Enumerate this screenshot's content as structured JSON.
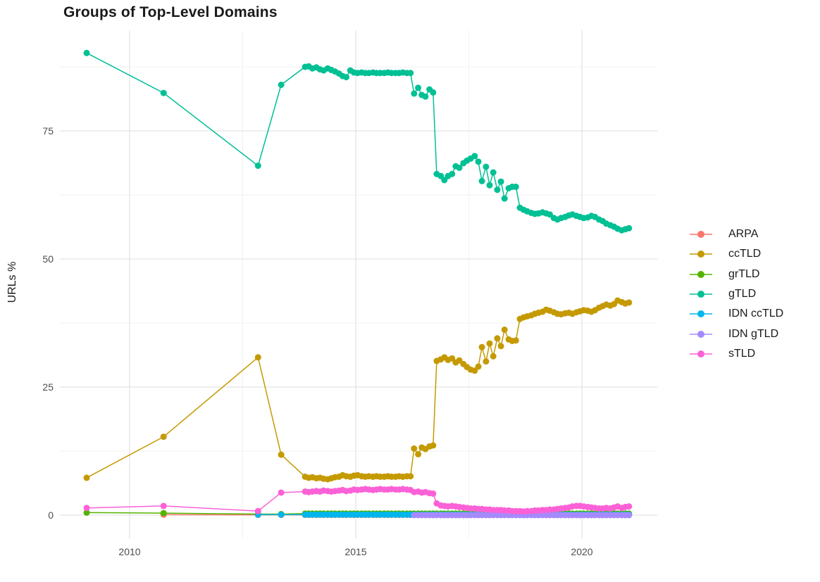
{
  "chart_data": {
    "type": "line",
    "title": "Groups of Top-Level Domains",
    "xlabel": "",
    "ylabel": "URLs %",
    "xlim": [
      2008.45,
      2021.67
    ],
    "ylim": [
      -4.5,
      94.7
    ],
    "x_tick_labels": [
      "2010",
      "2015",
      "2020"
    ],
    "x_tick_values": [
      2010,
      2015,
      2020
    ],
    "x_minor_gridlines": [
      2012.5,
      2017.5
    ],
    "y_tick_labels": [
      "0",
      "25",
      "50",
      "75"
    ],
    "y_tick_values": [
      0,
      25,
      50,
      75
    ],
    "y_minor_gridlines": [
      12.5,
      37.5,
      62.5,
      87.5
    ],
    "grid": "on",
    "legend_position": "right",
    "x": [
      2009.05,
      2010.75,
      2012.84,
      2013.35,
      2013.88,
      2013.96,
      2014.04,
      2014.13,
      2014.21,
      2014.29,
      2014.38,
      2014.46,
      2014.54,
      2014.63,
      2014.71,
      2014.79,
      2014.88,
      2014.96,
      2015.04,
      2015.13,
      2015.21,
      2015.29,
      2015.38,
      2015.46,
      2015.54,
      2015.63,
      2015.71,
      2015.79,
      2015.88,
      2015.96,
      2016.04,
      2016.13,
      2016.21,
      2016.29,
      2016.38,
      2016.46,
      2016.54,
      2016.63,
      2016.71,
      2016.79,
      2016.88,
      2016.96,
      2017.04,
      2017.13,
      2017.21,
      2017.29,
      2017.38,
      2017.46,
      2017.54,
      2017.63,
      2017.71,
      2017.79,
      2017.88,
      2017.96,
      2018.04,
      2018.13,
      2018.21,
      2018.29,
      2018.38,
      2018.46,
      2018.54,
      2018.63,
      2018.71,
      2018.79,
      2018.88,
      2018.96,
      2019.04,
      2019.13,
      2019.21,
      2019.29,
      2019.38,
      2019.46,
      2019.54,
      2019.63,
      2019.71,
      2019.79,
      2019.88,
      2019.96,
      2020.04,
      2020.13,
      2020.21,
      2020.29,
      2020.38,
      2020.46,
      2020.54,
      2020.63,
      2020.71,
      2020.79,
      2020.88,
      2020.96,
      2021.04
    ],
    "series": [
      {
        "name": "ARPA",
        "color": "#F8766D",
        "values": [
          null,
          0.1,
          0.05,
          0.05,
          0.05,
          0.05,
          0.05,
          0.05,
          0.05,
          0.05,
          0.05,
          0.05,
          0.05,
          0.05,
          0.05,
          0.05,
          0.05,
          0.05,
          0.05,
          0.05,
          0.05,
          0.05,
          0.05,
          0.05,
          0.05,
          0.05,
          0.05,
          0.05,
          0.05,
          0.05,
          0.05,
          0.05,
          0.05,
          0.05,
          0.05,
          0.05,
          0.05,
          0.05,
          0.05,
          0.05,
          0.05,
          0.05,
          0.05,
          0.05,
          0.05,
          0.05,
          0.05,
          0.05,
          0.05,
          0.05,
          0.05,
          0.05,
          0.05,
          0.05,
          0.05,
          0.05,
          0.05,
          0.05,
          0.05,
          0.05,
          0.05,
          0.05,
          0.05,
          0.05,
          0.05,
          0.05,
          0.05,
          0.05,
          0.05,
          0.05,
          0.05,
          0.05,
          0.05,
          0.05,
          0.05,
          0.05,
          0.05,
          0.05,
          0.05,
          0.05,
          0.05,
          0.05,
          0.05,
          0.05,
          0.05,
          0.05,
          0.05,
          0.05,
          0.05,
          0.05,
          0.05
        ]
      },
      {
        "name": "ccTLD",
        "color": "#C49A00",
        "values": [
          7.3,
          15.3,
          30.8,
          11.8,
          7.5,
          7.3,
          7.4,
          7.2,
          7.3,
          7.1,
          7.0,
          7.2,
          7.4,
          7.5,
          7.8,
          7.6,
          7.5,
          7.7,
          7.8,
          7.6,
          7.5,
          7.6,
          7.5,
          7.6,
          7.5,
          7.5,
          7.6,
          7.5,
          7.5,
          7.6,
          7.5,
          7.6,
          7.6,
          13.0,
          11.9,
          13.2,
          12.9,
          13.4,
          13.6,
          30.1,
          30.4,
          30.8,
          30.3,
          30.6,
          29.8,
          30.2,
          29.5,
          28.9,
          28.4,
          28.2,
          29.0,
          32.8,
          30.0,
          33.5,
          31.0,
          34.5,
          33.0,
          36.2,
          34.3,
          34.0,
          34.1,
          38.3,
          38.6,
          38.8,
          39.0,
          39.3,
          39.5,
          39.7,
          40.1,
          39.9,
          39.6,
          39.3,
          39.2,
          39.4,
          39.5,
          39.3,
          39.6,
          39.8,
          40.0,
          39.9,
          39.7,
          40.0,
          40.5,
          40.8,
          41.1,
          40.9,
          41.2,
          41.9,
          41.6,
          41.3,
          41.5
        ]
      },
      {
        "name": "grTLD",
        "color": "#53B400",
        "values": [
          0.5,
          0.4,
          0.2,
          0.2,
          0.3,
          0.3,
          0.3,
          0.3,
          0.3,
          0.3,
          0.3,
          0.3,
          0.3,
          0.3,
          0.3,
          0.3,
          0.3,
          0.3,
          0.3,
          0.3,
          0.3,
          0.3,
          0.3,
          0.3,
          0.3,
          0.3,
          0.3,
          0.3,
          0.3,
          0.3,
          0.3,
          0.3,
          0.3,
          0.3,
          0.3,
          0.3,
          0.3,
          0.3,
          0.3,
          0.3,
          0.3,
          0.3,
          0.3,
          0.3,
          0.3,
          0.3,
          0.3,
          0.3,
          0.3,
          0.3,
          0.3,
          0.3,
          0.3,
          0.3,
          0.3,
          0.3,
          0.3,
          0.3,
          0.3,
          0.3,
          0.3,
          0.3,
          0.3,
          0.3,
          0.3,
          0.3,
          0.3,
          0.3,
          0.3,
          0.3,
          0.3,
          0.3,
          0.3,
          0.3,
          0.3,
          0.3,
          0.3,
          0.3,
          0.3,
          0.3,
          0.3,
          0.3,
          0.3,
          0.3,
          0.3,
          0.3,
          0.3,
          0.3,
          0.3,
          0.3,
          0.3
        ]
      },
      {
        "name": "gTLD",
        "color": "#00C094",
        "values": [
          90.2,
          82.4,
          68.2,
          84.0,
          87.5,
          87.6,
          87.2,
          87.4,
          87.0,
          86.8,
          87.2,
          86.9,
          86.6,
          86.2,
          85.7,
          85.5,
          86.8,
          86.4,
          86.3,
          86.4,
          86.3,
          86.3,
          86.4,
          86.3,
          86.3,
          86.3,
          86.4,
          86.3,
          86.3,
          86.3,
          86.4,
          86.3,
          86.3,
          82.3,
          83.4,
          82.0,
          81.7,
          83.1,
          82.5,
          66.6,
          66.2,
          65.4,
          66.2,
          66.6,
          68.1,
          67.8,
          68.7,
          69.2,
          69.6,
          70.1,
          69.0,
          65.2,
          68.0,
          64.4,
          66.9,
          63.5,
          65.1,
          61.8,
          63.8,
          64.1,
          64.1,
          60.0,
          59.6,
          59.3,
          59.0,
          58.8,
          58.9,
          59.1,
          58.9,
          58.7,
          58.0,
          57.7,
          58.0,
          58.2,
          58.5,
          58.7,
          58.4,
          58.2,
          58.0,
          58.1,
          58.4,
          58.2,
          57.7,
          57.4,
          56.9,
          56.6,
          56.3,
          55.9,
          55.6,
          55.8,
          56.0
        ]
      },
      {
        "name": "IDN ccTLD",
        "color": "#00B6EB",
        "values": [
          null,
          null,
          0.1,
          0.1,
          0.1,
          0.1,
          0.1,
          0.1,
          0.1,
          0.1,
          0.1,
          0.1,
          0.1,
          0.1,
          0.1,
          0.1,
          0.1,
          0.1,
          0.1,
          0.1,
          0.1,
          0.1,
          0.1,
          0.1,
          0.1,
          0.1,
          0.1,
          0.1,
          0.1,
          0.1,
          0.1,
          0.1,
          0.1,
          0.1,
          0.1,
          0.1,
          0.1,
          0.1,
          0.1,
          0.1,
          0.1,
          0.1,
          0.1,
          0.1,
          0.1,
          0.1,
          0.1,
          0.1,
          0.1,
          0.1,
          0.1,
          0.1,
          0.1,
          0.1,
          0.1,
          0.1,
          0.1,
          0.1,
          0.1,
          0.1,
          0.1,
          0.1,
          0.1,
          0.1,
          0.1,
          0.1,
          0.1,
          0.1,
          0.1,
          0.1,
          0.1,
          0.1,
          0.1,
          0.1,
          0.1,
          0.1,
          0.1,
          0.1,
          0.1,
          0.1,
          0.1,
          0.1,
          0.1,
          0.1,
          0.1,
          0.1,
          0.1,
          0.1,
          0.1,
          0.1,
          0.1
        ]
      },
      {
        "name": "IDN gTLD",
        "color": "#A58AFF",
        "values": [
          null,
          null,
          null,
          null,
          null,
          null,
          null,
          null,
          null,
          null,
          null,
          null,
          null,
          null,
          null,
          null,
          null,
          null,
          null,
          null,
          null,
          null,
          null,
          null,
          null,
          null,
          null,
          null,
          null,
          null,
          null,
          null,
          null,
          0,
          0,
          0,
          0,
          0,
          0,
          0,
          0,
          0,
          0,
          0,
          0,
          0,
          0,
          0,
          0,
          0,
          0,
          0,
          0,
          0,
          0,
          0,
          0,
          0,
          0,
          0,
          0,
          0,
          0,
          0,
          0,
          0,
          0,
          0,
          0,
          0,
          0,
          0,
          0,
          0,
          0,
          0,
          0,
          0,
          0,
          0,
          0,
          0,
          0,
          0,
          0,
          0,
          0,
          0,
          0,
          0,
          0
        ]
      },
      {
        "name": "sTLD",
        "color": "#FB61D7",
        "values": [
          1.4,
          1.8,
          0.8,
          4.4,
          4.6,
          4.5,
          4.6,
          4.7,
          4.6,
          4.8,
          4.7,
          4.6,
          4.7,
          4.8,
          4.9,
          4.7,
          4.8,
          5.0,
          4.9,
          5.0,
          5.1,
          5.0,
          4.9,
          5.0,
          5.1,
          5.0,
          5.0,
          5.1,
          5.0,
          5.0,
          5.1,
          5.0,
          4.9,
          4.5,
          4.6,
          4.4,
          4.5,
          4.3,
          4.2,
          2.3,
          1.9,
          1.8,
          1.7,
          1.8,
          1.7,
          1.6,
          1.5,
          1.4,
          1.3,
          1.3,
          1.2,
          1.2,
          1.1,
          1.1,
          1.0,
          1.0,
          1.0,
          0.9,
          0.9,
          0.8,
          0.8,
          0.8,
          0.7,
          0.8,
          0.8,
          0.9,
          0.9,
          1.0,
          1.0,
          1.1,
          1.1,
          1.2,
          1.3,
          1.4,
          1.5,
          1.7,
          1.8,
          1.8,
          1.7,
          1.6,
          1.5,
          1.4,
          1.3,
          1.3,
          1.4,
          1.3,
          1.5,
          1.7,
          1.4,
          1.6,
          1.7
        ]
      }
    ],
    "style": {
      "background": "#ffffff",
      "grid_major_color": "#e3e3e3",
      "grid_minor_color": "#f1f1f1",
      "tick_text_color": "#4d4d4d",
      "title_color": "#1a1a1a"
    }
  }
}
